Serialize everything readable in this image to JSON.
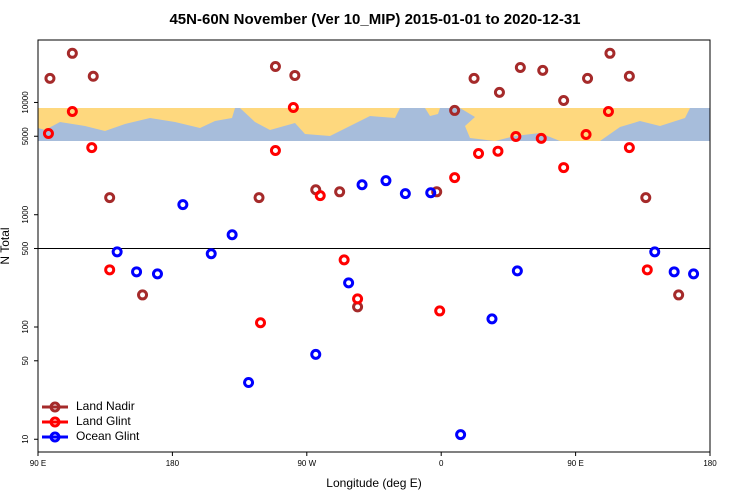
{
  "chart_data": {
    "type": "scatter",
    "title": "45N-60N November (Ver 10_MIP)   2015-01-01 to 2020-12-31",
    "xlabel": "Longitude (deg E)",
    "ylabel": "N Total",
    "xlim": [
      90,
      540
    ],
    "ylim": [
      7.7,
      36000
    ],
    "log_y": true,
    "hline": 500,
    "legend": "bottom-left",
    "xticks": [
      {
        "value": 90,
        "label": "90 E"
      },
      180,
      {
        "value": 270,
        "label": "90 W"
      },
      {
        "value": 360,
        "label": "0"
      },
      {
        "value": 450,
        "label": "90 E"
      },
      {
        "value": 540,
        "label": "180"
      }
    ],
    "yticks": [
      10,
      50,
      100,
      500,
      1000,
      5000,
      10000
    ],
    "series": [
      {
        "name": "Land Nadir",
        "color": "#a52a2a",
        "x": [
          98,
          113,
          127,
          138,
          160,
          238,
          249,
          262,
          276,
          292,
          304,
          357,
          369,
          382,
          399,
          413,
          428,
          442,
          458,
          473,
          486,
          497,
          519
        ],
        "values": [
          16400,
          27400,
          17100,
          1420,
          193,
          1420,
          20900,
          17400,
          1670,
          1600,
          151,
          1600,
          8490,
          16400,
          12300,
          20500,
          19300,
          10400,
          16400,
          27400,
          17100,
          1420,
          193
        ]
      },
      {
        "name": "Land Glint",
        "color": "#ff0000",
        "x": [
          97,
          113,
          126,
          138,
          239,
          249,
          261,
          279,
          295,
          304,
          359,
          369,
          385,
          398,
          410,
          427,
          442,
          457,
          472,
          486,
          498
        ],
        "values": [
          5290,
          8310,
          3960,
          323,
          109,
          3730,
          9020,
          1480,
          396,
          178,
          139,
          2140,
          3510,
          3680,
          4970,
          4790,
          2630,
          5180,
          8310,
          3960,
          323
        ]
      },
      {
        "name": "Ocean Glint",
        "color": "#0000ff",
        "x": [
          143,
          156,
          170,
          187,
          206,
          220,
          231,
          276,
          298,
          307,
          323,
          336,
          353,
          373,
          394,
          411,
          503,
          516,
          529
        ],
        "values": [
          467,
          310,
          297,
          1230,
          449,
          663,
          32,
          57,
          247,
          1850,
          2010,
          1540,
          1570,
          11,
          118,
          316,
          467,
          310,
          297
        ]
      }
    ]
  }
}
